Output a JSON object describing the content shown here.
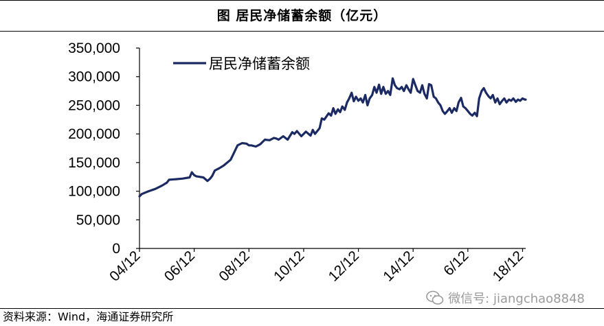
{
  "title": "图    居民净储蓄余额（亿元）",
  "source": "资料来源：Wind，海通证券研究所",
  "watermark": {
    "text": "微信号: jiangchao8848",
    "icon": "wechat-icon"
  },
  "colors": {
    "series": "#1c2a63",
    "axis": "#000000"
  },
  "chart_data": {
    "type": "line",
    "title": "居民净储蓄余额（亿元）",
    "xlabel": "",
    "ylabel": "",
    "ylim": [
      0,
      350000
    ],
    "yticks": [
      "350,000",
      "300,000",
      "250,000",
      "200,000",
      "150,000",
      "100,000",
      "50,000",
      "0"
    ],
    "ytick_values": [
      350000,
      300000,
      250000,
      200000,
      150000,
      100000,
      50000,
      0
    ],
    "xticks": [
      "04/12",
      "06/12",
      "08/12",
      "10/12",
      "12/12",
      "14/12",
      "6/12",
      "18/12"
    ],
    "xtick_values": [
      2004.917,
      2006.917,
      2008.917,
      2010.917,
      2012.917,
      2014.917,
      2016.917,
      2018.917
    ],
    "xlim": [
      2004.917,
      2019.03
    ],
    "legend_position": "top-left",
    "grid": false,
    "series": [
      {
        "name": "居民净储蓄余额",
        "x": [
          2004.917,
          2005.0,
          2005.25,
          2005.5,
          2005.75,
          2005.917,
          2006.0,
          2006.25,
          2006.5,
          2006.75,
          2006.83,
          2006.917,
          2007.0,
          2007.25,
          2007.4,
          2007.5,
          2007.58,
          2007.67,
          2007.83,
          2008.0,
          2008.25,
          2008.5,
          2008.67,
          2008.83,
          2008.917,
          2009.0,
          2009.17,
          2009.33,
          2009.5,
          2009.67,
          2009.83,
          2009.917,
          2010.0,
          2010.17,
          2010.33,
          2010.5,
          2010.58,
          2010.67,
          2010.83,
          2010.917,
          2011.0,
          2011.17,
          2011.25,
          2011.33,
          2011.5,
          2011.58,
          2011.67,
          2011.83,
          2011.917,
          2012.0,
          2012.08,
          2012.17,
          2012.25,
          2012.33,
          2012.42,
          2012.5,
          2012.58,
          2012.67,
          2012.75,
          2012.83,
          2012.917,
          2013.0,
          2013.08,
          2013.17,
          2013.25,
          2013.33,
          2013.42,
          2013.5,
          2013.58,
          2013.67,
          2013.75,
          2013.83,
          2013.917,
          2014.0,
          2014.08,
          2014.17,
          2014.25,
          2014.33,
          2014.42,
          2014.5,
          2014.58,
          2014.67,
          2014.75,
          2014.83,
          2014.917,
          2015.0,
          2015.08,
          2015.17,
          2015.25,
          2015.33,
          2015.42,
          2015.5,
          2015.58,
          2015.67,
          2015.75,
          2015.83,
          2015.917,
          2016.0,
          2016.08,
          2016.17,
          2016.25,
          2016.33,
          2016.42,
          2016.5,
          2016.58,
          2016.67,
          2016.75,
          2016.83,
          2016.917,
          2017.0,
          2017.08,
          2017.17,
          2017.25,
          2017.33,
          2017.42,
          2017.5,
          2017.58,
          2017.67,
          2017.75,
          2017.83,
          2017.917,
          2018.0,
          2018.08,
          2018.17,
          2018.25,
          2018.33,
          2018.42,
          2018.5,
          2018.58,
          2018.67,
          2018.75,
          2018.83,
          2018.917,
          2019.0,
          2019.03
        ],
        "values": [
          91000,
          95000,
          100000,
          104000,
          110000,
          115000,
          120000,
          121000,
          122000,
          124000,
          133000,
          128000,
          126000,
          124000,
          118000,
          122000,
          127000,
          136000,
          140000,
          145000,
          155000,
          180000,
          184000,
          183000,
          180000,
          180000,
          178000,
          182000,
          190000,
          189000,
          193000,
          192000,
          190000,
          196000,
          190000,
          203000,
          200000,
          205000,
          196000,
          200000,
          204000,
          197000,
          207000,
          200000,
          210000,
          227000,
          225000,
          236000,
          232000,
          245000,
          235000,
          243000,
          238000,
          248000,
          242000,
          255000,
          262000,
          272000,
          257000,
          265000,
          258000,
          262000,
          255000,
          268000,
          250000,
          262000,
          268000,
          282000,
          272000,
          286000,
          270000,
          282000,
          270000,
          275000,
          268000,
          297000,
          285000,
          280000,
          278000,
          282000,
          275000,
          285000,
          278000,
          272000,
          296000,
          285000,
          275000,
          272000,
          285000,
          270000,
          262000,
          287000,
          285000,
          265000,
          262000,
          255000,
          250000,
          240000,
          235000,
          240000,
          245000,
          237000,
          245000,
          240000,
          255000,
          263000,
          248000,
          245000,
          240000,
          235000,
          232000,
          237000,
          231000,
          262000,
          275000,
          280000,
          272000,
          266000,
          262000,
          268000,
          255000,
          262000,
          252000,
          258000,
          262000,
          255000,
          260000,
          258000,
          262000,
          256000,
          260000,
          258000,
          262000,
          260000,
          260000
        ]
      }
    ]
  }
}
